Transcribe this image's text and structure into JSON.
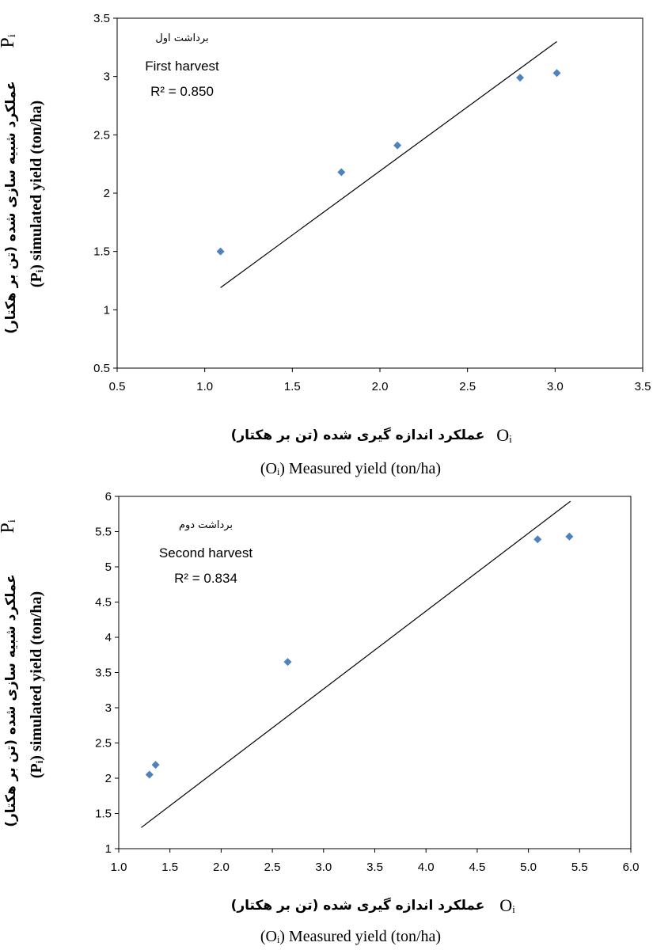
{
  "chart_data": [
    {
      "type": "scatter",
      "annotation": {
        "persian": "برداشت اول",
        "english": "First harvest",
        "r2": "R² = 0.850"
      },
      "xlabel": {
        "persian": "عملکرد اندازه گیری شده (تن بر هکتار)",
        "symbol": "Oᵢ",
        "english": "(Oᵢ) Measured yield (ton/ha)"
      },
      "ylabel": {
        "persian": "عملکرد شبیه سازی شده (تن بر هکتار)",
        "symbol": "Pᵢ",
        "english": "(Pᵢ) simulated yield (ton/ha)"
      },
      "xlim": [
        0.5,
        3.5
      ],
      "ylim": [
        0.5,
        3.5
      ],
      "x_ticks": [
        "0.5",
        "1.0",
        "1.5",
        "2.0",
        "2.5",
        "3.0",
        "3.5"
      ],
      "y_ticks": [
        "0.5",
        "1",
        "1.5",
        "2",
        "2.5",
        "3",
        "3.5"
      ],
      "points": [
        {
          "x": 1.09,
          "y": 1.5
        },
        {
          "x": 1.78,
          "y": 2.18
        },
        {
          "x": 2.1,
          "y": 2.41
        },
        {
          "x": 2.8,
          "y": 2.99
        },
        {
          "x": 3.01,
          "y": 3.03
        }
      ],
      "trendline": [
        {
          "x": 1.09,
          "y": 1.19
        },
        {
          "x": 3.01,
          "y": 3.3
        }
      ],
      "marker_color": "#4f81bd",
      "line_color": "#000000",
      "grid": false
    },
    {
      "type": "scatter",
      "annotation": {
        "persian": "برداشت دوم",
        "english": "Second harvest",
        "r2": "R² = 0.834"
      },
      "xlabel": {
        "persian": "عملکرد اندازه گیری شده (تن بر هکتار)",
        "symbol": "Oᵢ",
        "english": "(Oᵢ) Measured yield (ton/ha)"
      },
      "ylabel": {
        "persian": "عملکرد شبیه سازی شده (تن بر هکتار)",
        "symbol": "Pᵢ",
        "english": "(Pᵢ) simulated yield (ton/ha)"
      },
      "xlim": [
        1.0,
        6.0
      ],
      "ylim": [
        1,
        6
      ],
      "x_ticks": [
        "1.0",
        "1.5",
        "2.0",
        "2.5",
        "3.0",
        "3.5",
        "4.0",
        "4.5",
        "5.0",
        "5.5",
        "6.0"
      ],
      "y_ticks": [
        "1",
        "1.5",
        "2",
        "2.5",
        "3",
        "3.5",
        "4",
        "4.5",
        "5",
        "5.5",
        "6"
      ],
      "points": [
        {
          "x": 1.3,
          "y": 2.05
        },
        {
          "x": 1.36,
          "y": 2.19
        },
        {
          "x": 2.65,
          "y": 3.65
        },
        {
          "x": 5.09,
          "y": 5.39
        },
        {
          "x": 5.4,
          "y": 5.43
        }
      ],
      "trendline": [
        {
          "x": 1.22,
          "y": 1.3
        },
        {
          "x": 5.41,
          "y": 5.93
        }
      ],
      "marker_color": "#4f81bd",
      "line_color": "#000000",
      "grid": false
    }
  ]
}
